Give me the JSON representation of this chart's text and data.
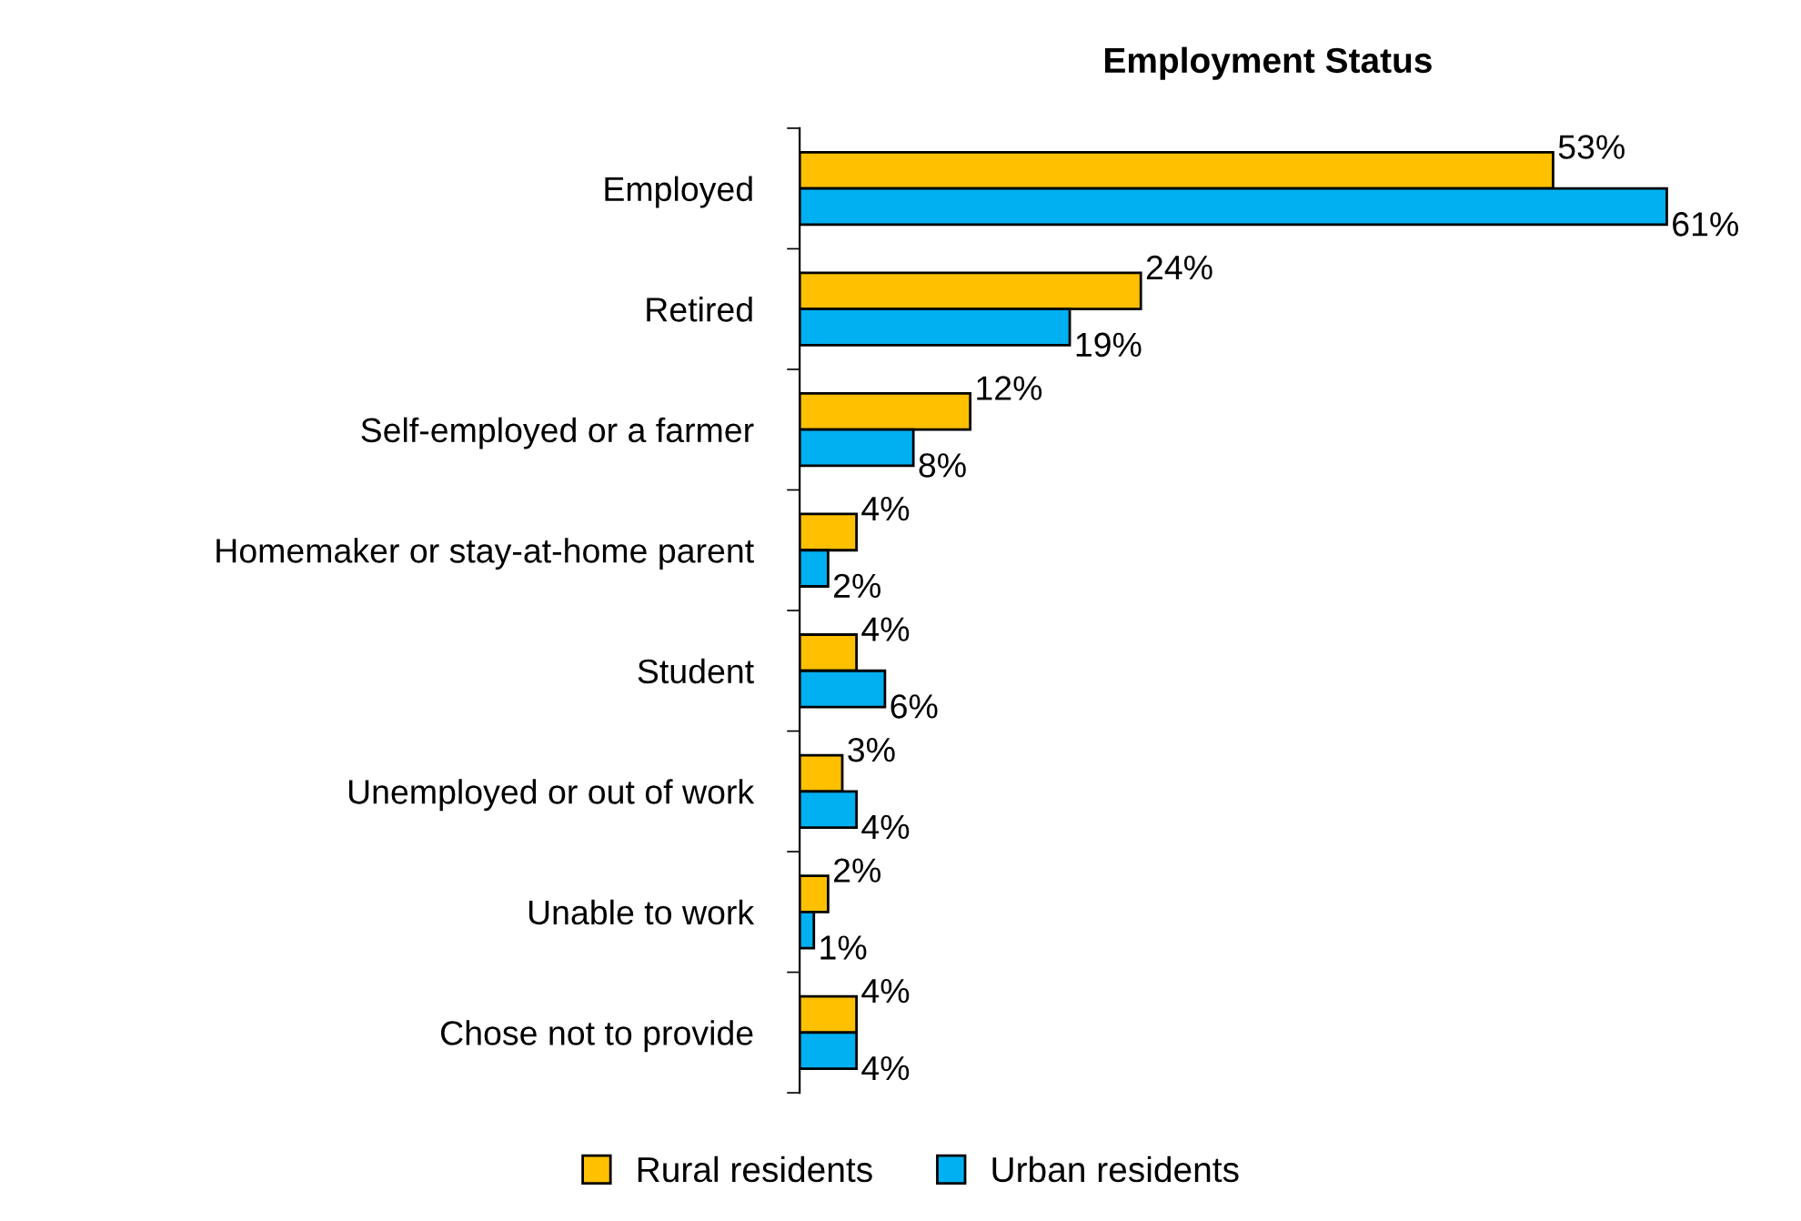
{
  "chart_data": {
    "type": "bar",
    "orientation": "horizontal",
    "title": "Employment Status",
    "categories": [
      "Employed",
      "Retired",
      "Self-employed or a farmer",
      "Homemaker or stay-at-home parent",
      "Student",
      "Unemployed or out of work",
      "Unable to work",
      "Chose not to provide"
    ],
    "series": [
      {
        "name": "Rural residents",
        "color": "#ffc000",
        "values": [
          53,
          24,
          12,
          4,
          4,
          3,
          2,
          4
        ],
        "value_labels": [
          "53%",
          "24%",
          "12%",
          "4%",
          "4%",
          "3%",
          "2%",
          "4%"
        ]
      },
      {
        "name": "Urban residents",
        "color": "#00b0f0",
        "values": [
          61,
          19,
          8,
          2,
          6,
          4,
          1,
          4
        ],
        "value_labels": [
          "61%",
          "19%",
          "8%",
          "2%",
          "6%",
          "4%",
          "1%",
          "4%"
        ]
      }
    ],
    "grid": false,
    "legend": "bottom",
    "marker": "square"
  }
}
